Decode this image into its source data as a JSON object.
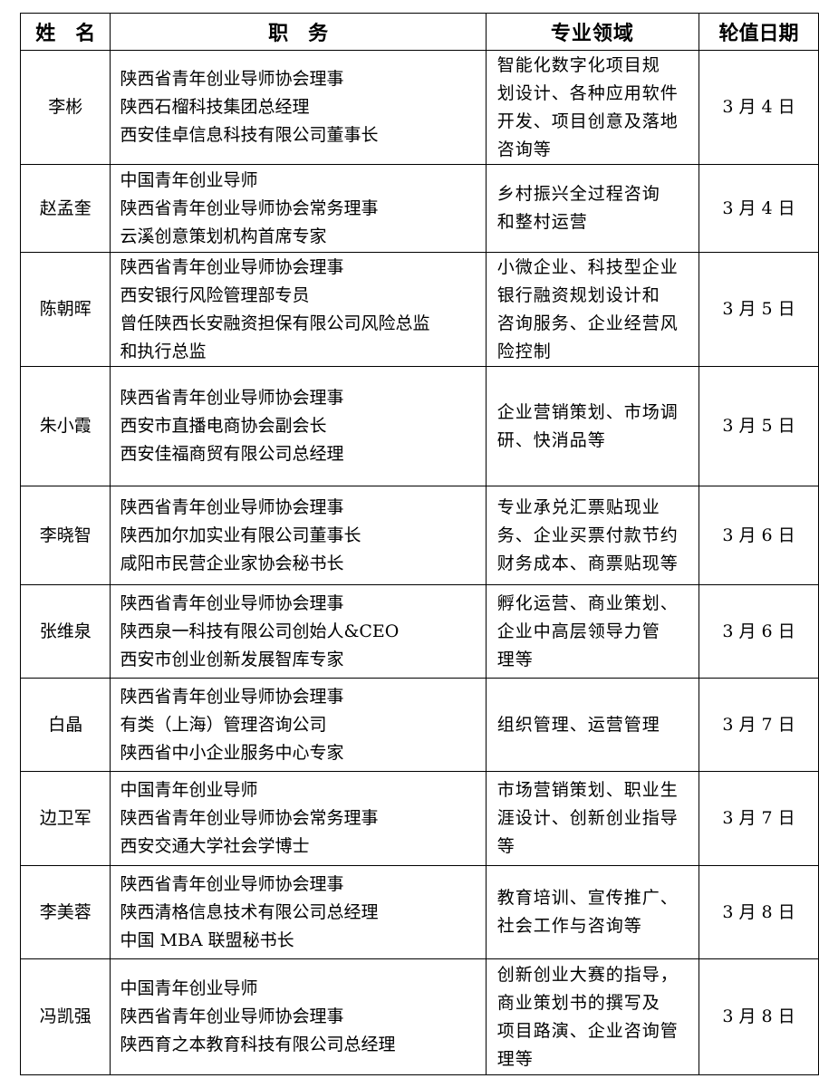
{
  "headers": {
    "name": "姓　名",
    "position": "职　务",
    "expertise": "专业领域",
    "date": "轮值日期"
  },
  "rows": [
    {
      "name": "李彬",
      "position": [
        "陕西省青年创业导师协会理事",
        "陕西石榴科技集团总经理",
        "西安佳卓信息科技有限公司董事长"
      ],
      "expertise": [
        "智能化数字化项目规",
        "划设计、各种应用软件",
        "开发、项目创意及落地",
        "咨询等"
      ],
      "date": "3 月 4 日"
    },
    {
      "name": "赵孟奎",
      "position": [
        "中国青年创业导师",
        "陕西省青年创业导师协会常务理事",
        "云溪创意策划机构首席专家"
      ],
      "expertise": [
        "乡村振兴全过程咨询",
        "和整村运营"
      ],
      "date": "3 月 4 日"
    },
    {
      "name": "陈朝晖",
      "position": [
        "陕西省青年创业导师协会理事",
        "西安银行风险管理部专员",
        "曾任陕西长安融资担保有限公司风险总监",
        "和执行总监"
      ],
      "expertise": [
        "小微企业、科技型企业",
        "银行融资规划设计和",
        "咨询服务、企业经营风",
        "险控制"
      ],
      "date": "3 月 5 日"
    },
    {
      "name": "朱小霞",
      "position": [
        "陕西省青年创业导师协会理事",
        "西安市直播电商协会副会长",
        "西安佳福商贸有限公司总经理"
      ],
      "expertise": [
        "企业营销策划、市场调",
        "研、快消品等"
      ],
      "date": "3 月 5 日"
    },
    {
      "name": "李晓智",
      "position": [
        "陕西省青年创业导师协会理事",
        "陕西加尔加实业有限公司董事长",
        "咸阳市民营企业家协会秘书长"
      ],
      "expertise": [
        "专业承兑汇票贴现业",
        "务、企业买票付款节约",
        "财务成本、商票贴现等"
      ],
      "date": "3 月 6 日"
    },
    {
      "name": "张维泉",
      "position": [
        "陕西省青年创业导师协会理事",
        "陕西泉一科技有限公司创始人&CEO",
        "西安市创业创新发展智库专家"
      ],
      "expertise": [
        "孵化运营、商业策划、",
        "企业中高层领导力管",
        "理等"
      ],
      "date": "3 月 6 日"
    },
    {
      "name": "白晶",
      "position": [
        "陕西省青年创业导师协会理事",
        "有类（上海）管理咨询公司",
        "陕西省中小企业服务中心专家"
      ],
      "expertise": [
        "组织管理、运营管理"
      ],
      "date": "3 月 7 日"
    },
    {
      "name": "边卫军",
      "position": [
        "中国青年创业导师",
        "陕西省青年创业导师协会常务理事",
        "西安交通大学社会学博士"
      ],
      "expertise": [
        "市场营销策划、职业生",
        "涯设计、创新创业指导",
        "等"
      ],
      "date": "3 月 7 日"
    },
    {
      "name": "李美蓉",
      "position": [
        "陕西省青年创业导师协会理事",
        "陕西清格信息技术有限公司总经理",
        "中国 MBA 联盟秘书长"
      ],
      "expertise": [
        "教育培训、宣传推广、",
        "社会工作与咨询等"
      ],
      "date": "3 月 8 日"
    },
    {
      "name": "冯凯强",
      "position": [
        "中国青年创业导师",
        "陕西省青年创业导师协会理事",
        "陕西育之本教育科技有限公司总经理"
      ],
      "expertise": [
        "创新创业大赛的指导，",
        "商业策划书的撰写及",
        "项目路演、企业咨询管",
        "理等"
      ],
      "date": "3 月 8 日"
    }
  ]
}
